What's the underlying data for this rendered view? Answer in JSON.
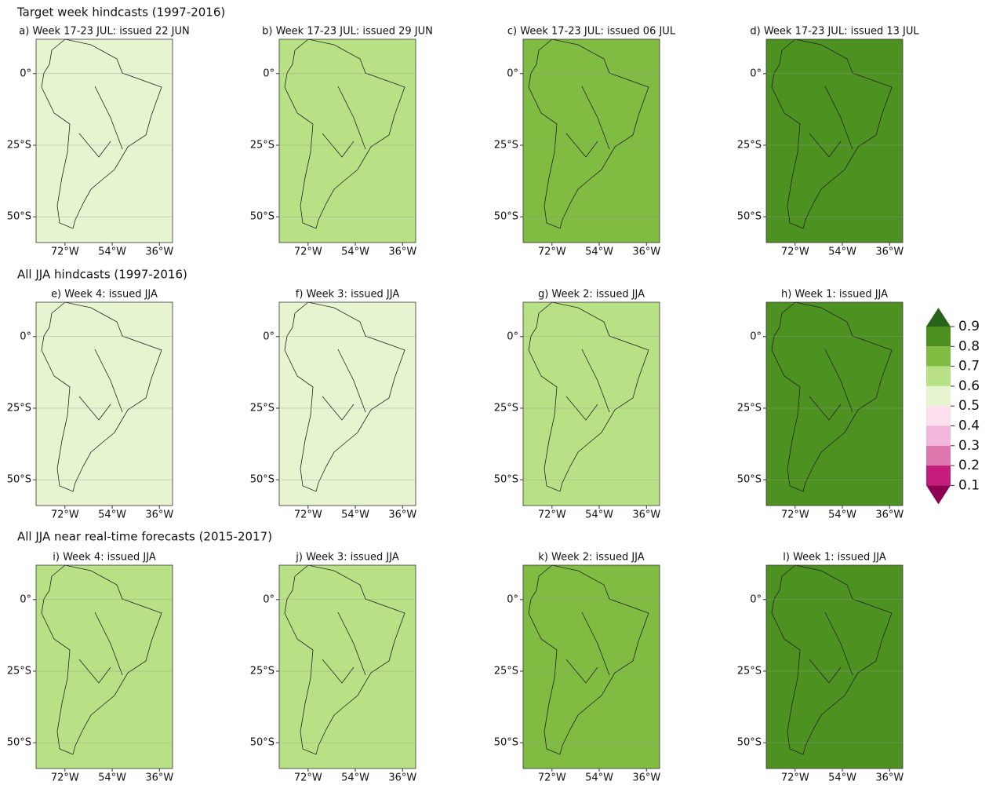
{
  "row_titles": [
    "Target week hindcasts (1997-2016)",
    "All JJA hindcasts (1997-2016)",
    "All JJA near real-time forecasts (2015-2017)"
  ],
  "chart_data": [
    {
      "type": "map",
      "title": "a) Week 17-23 JUL: issued 22 JUN",
      "color": "#e6f5d0",
      "xlim": [
        -83,
        -31
      ],
      "ylim": [
        -59,
        12
      ],
      "xticks": [
        {
          "value": -72,
          "label": "72°W"
        },
        {
          "value": -54,
          "label": "54°W"
        },
        {
          "value": -36,
          "label": "36°W"
        }
      ],
      "yticks": [
        {
          "value": 0,
          "label": "0°"
        },
        {
          "value": -25,
          "label": "25°S"
        },
        {
          "value": -50,
          "label": "50°S"
        }
      ]
    },
    {
      "type": "map",
      "title": "b) Week 17-23 JUL: issued 29 JUN",
      "color": "#b8e186",
      "xlim": [
        -83,
        -31
      ],
      "ylim": [
        -59,
        12
      ],
      "xticks": [
        {
          "value": -72,
          "label": "72°W"
        },
        {
          "value": -54,
          "label": "54°W"
        },
        {
          "value": -36,
          "label": "36°W"
        }
      ],
      "yticks": [
        {
          "value": 0,
          "label": "0°"
        },
        {
          "value": -25,
          "label": "25°S"
        },
        {
          "value": -50,
          "label": "50°S"
        }
      ]
    },
    {
      "type": "map",
      "title": "c) Week 17-23 JUL: issued 06 JUL",
      "color": "#7fbc41",
      "xlim": [
        -83,
        -31
      ],
      "ylim": [
        -59,
        12
      ],
      "xticks": [
        {
          "value": -72,
          "label": "72°W"
        },
        {
          "value": -54,
          "label": "54°W"
        },
        {
          "value": -36,
          "label": "36°W"
        }
      ],
      "yticks": [
        {
          "value": 0,
          "label": "0°"
        },
        {
          "value": -25,
          "label": "25°S"
        },
        {
          "value": -50,
          "label": "50°S"
        }
      ]
    },
    {
      "type": "map",
      "title": "d) Week 17-23 JUL: issued 13 JUL",
      "color": "#4d9221",
      "xlim": [
        -83,
        -31
      ],
      "ylim": [
        -59,
        12
      ],
      "xticks": [
        {
          "value": -72,
          "label": "72°W"
        },
        {
          "value": -54,
          "label": "54°W"
        },
        {
          "value": -36,
          "label": "36°W"
        }
      ],
      "yticks": [
        {
          "value": 0,
          "label": "0°"
        },
        {
          "value": -25,
          "label": "25°S"
        },
        {
          "value": -50,
          "label": "50°S"
        }
      ]
    },
    {
      "type": "map",
      "title": "e) Week 4: issued JJA",
      "color": "#e6f5d0",
      "xlim": [
        -83,
        -31
      ],
      "ylim": [
        -59,
        12
      ],
      "xticks": [
        {
          "value": -72,
          "label": "72°W"
        },
        {
          "value": -54,
          "label": "54°W"
        },
        {
          "value": -36,
          "label": "36°W"
        }
      ],
      "yticks": [
        {
          "value": 0,
          "label": "0°"
        },
        {
          "value": -25,
          "label": "25°S"
        },
        {
          "value": -50,
          "label": "50°S"
        }
      ]
    },
    {
      "type": "map",
      "title": "f) Week 3: issued JJA",
      "color": "#e6f5d0",
      "xlim": [
        -83,
        -31
      ],
      "ylim": [
        -59,
        12
      ],
      "xticks": [
        {
          "value": -72,
          "label": "72°W"
        },
        {
          "value": -54,
          "label": "54°W"
        },
        {
          "value": -36,
          "label": "36°W"
        }
      ],
      "yticks": [
        {
          "value": 0,
          "label": "0°"
        },
        {
          "value": -25,
          "label": "25°S"
        },
        {
          "value": -50,
          "label": "50°S"
        }
      ]
    },
    {
      "type": "map",
      "title": "g) Week 2: issued JJA",
      "color": "#b8e186",
      "xlim": [
        -83,
        -31
      ],
      "ylim": [
        -59,
        12
      ],
      "xticks": [
        {
          "value": -72,
          "label": "72°W"
        },
        {
          "value": -54,
          "label": "54°W"
        },
        {
          "value": -36,
          "label": "36°W"
        }
      ],
      "yticks": [
        {
          "value": 0,
          "label": "0°"
        },
        {
          "value": -25,
          "label": "25°S"
        },
        {
          "value": -50,
          "label": "50°S"
        }
      ]
    },
    {
      "type": "map",
      "title": "h) Week 1: issued JJA",
      "color": "#4d9221",
      "xlim": [
        -83,
        -31
      ],
      "ylim": [
        -59,
        12
      ],
      "xticks": [
        {
          "value": -72,
          "label": "72°W"
        },
        {
          "value": -54,
          "label": "54°W"
        },
        {
          "value": -36,
          "label": "36°W"
        }
      ],
      "yticks": [
        {
          "value": 0,
          "label": "0°"
        },
        {
          "value": -25,
          "label": "25°S"
        },
        {
          "value": -50,
          "label": "50°S"
        }
      ]
    },
    {
      "type": "map",
      "title": "i) Week 4: issued JJA",
      "color": "#b8e186",
      "xlim": [
        -83,
        -31
      ],
      "ylim": [
        -59,
        12
      ],
      "xticks": [
        {
          "value": -72,
          "label": "72°W"
        },
        {
          "value": -54,
          "label": "54°W"
        },
        {
          "value": -36,
          "label": "36°W"
        }
      ],
      "yticks": [
        {
          "value": 0,
          "label": "0°"
        },
        {
          "value": -25,
          "label": "25°S"
        },
        {
          "value": -50,
          "label": "50°S"
        }
      ]
    },
    {
      "type": "map",
      "title": "j) Week 3: issued JJA",
      "color": "#b8e186",
      "xlim": [
        -83,
        -31
      ],
      "ylim": [
        -59,
        12
      ],
      "xticks": [
        {
          "value": -72,
          "label": "72°W"
        },
        {
          "value": -54,
          "label": "54°W"
        },
        {
          "value": -36,
          "label": "36°W"
        }
      ],
      "yticks": [
        {
          "value": 0,
          "label": "0°"
        },
        {
          "value": -25,
          "label": "25°S"
        },
        {
          "value": -50,
          "label": "50°S"
        }
      ]
    },
    {
      "type": "map",
      "title": "k) Week 2: issued JJA",
      "color": "#7fbc41",
      "xlim": [
        -83,
        -31
      ],
      "ylim": [
        -59,
        12
      ],
      "xticks": [
        {
          "value": -72,
          "label": "72°W"
        },
        {
          "value": -54,
          "label": "54°W"
        },
        {
          "value": -36,
          "label": "36°W"
        }
      ],
      "yticks": [
        {
          "value": 0,
          "label": "0°"
        },
        {
          "value": -25,
          "label": "25°S"
        },
        {
          "value": -50,
          "label": "50°S"
        }
      ]
    },
    {
      "type": "map",
      "title": "l) Week 1: issued JJA",
      "color": "#4d9221",
      "xlim": [
        -83,
        -31
      ],
      "ylim": [
        -59,
        12
      ],
      "xticks": [
        {
          "value": -72,
          "label": "72°W"
        },
        {
          "value": -54,
          "label": "54°W"
        },
        {
          "value": -36,
          "label": "36°W"
        }
      ],
      "yticks": [
        {
          "value": 0,
          "label": "0°"
        },
        {
          "value": -25,
          "label": "25°S"
        },
        {
          "value": -50,
          "label": "50°S"
        }
      ]
    }
  ],
  "colorbar": {
    "levels": [
      0.1,
      0.2,
      0.3,
      0.4,
      0.5,
      0.6,
      0.7,
      0.8,
      0.9
    ],
    "colors": [
      "#8e0152",
      "#c51b7d",
      "#de77ae",
      "#f1b6da",
      "#fde0ef",
      "#e6f5d0",
      "#b8e186",
      "#7fbc41",
      "#4d9221",
      "#276419"
    ]
  }
}
